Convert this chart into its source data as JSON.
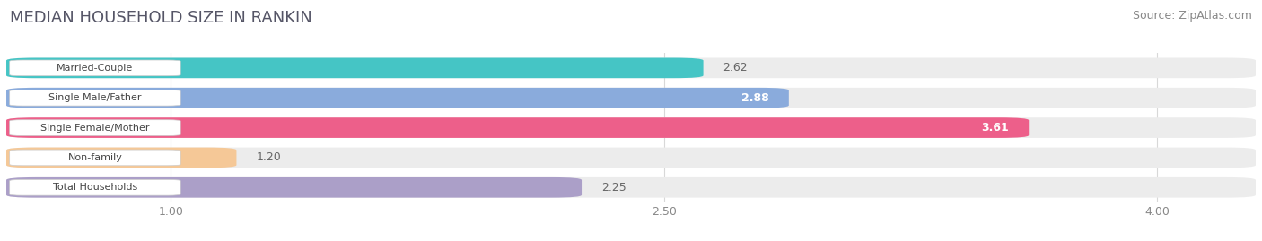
{
  "title": "MEDIAN HOUSEHOLD SIZE IN RANKIN",
  "source": "Source: ZipAtlas.com",
  "categories": [
    "Married-Couple",
    "Single Male/Father",
    "Single Female/Mother",
    "Non-family",
    "Total Households"
  ],
  "values": [
    2.62,
    2.88,
    3.61,
    1.2,
    2.25
  ],
  "bar_colors": [
    "#45c5c5",
    "#8aabdc",
    "#ed5f8a",
    "#f5c897",
    "#ab9fc8"
  ],
  "bar_bg_color": "#ececec",
  "value_inside": [
    false,
    true,
    true,
    false,
    false
  ],
  "xlim_min": 0.5,
  "xlim_max": 4.3,
  "xticks": [
    1.0,
    2.5,
    4.0
  ],
  "xticklabels": [
    "1.00",
    "2.50",
    "4.00"
  ],
  "background_color": "#ffffff",
  "title_fontsize": 13,
  "source_fontsize": 9,
  "bar_label_fontsize": 9,
  "category_fontsize": 8,
  "bar_height": 0.68,
  "bar_gap": 0.32
}
